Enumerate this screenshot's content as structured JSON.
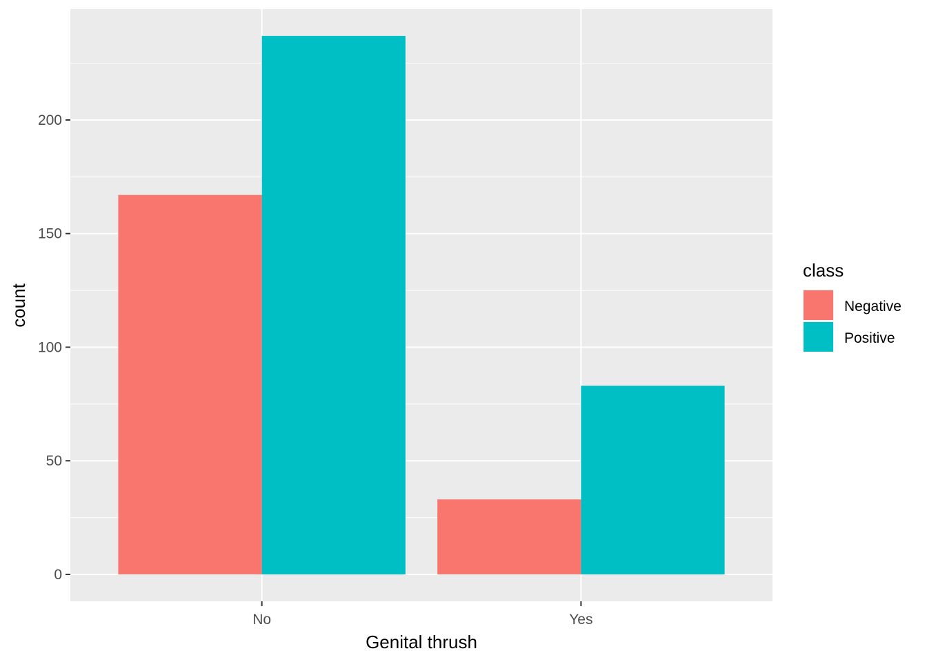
{
  "chart_data": {
    "type": "bar",
    "categories": [
      "No",
      "Yes"
    ],
    "series": [
      {
        "name": "Negative",
        "values": [
          167,
          33
        ],
        "color": "#F8766D"
      },
      {
        "name": "Positive",
        "values": [
          237,
          83
        ],
        "color": "#00BFC4"
      }
    ],
    "xlabel": "Genital thrush",
    "ylabel": "count",
    "ylim": [
      -11.85,
      248.85
    ],
    "yticks": [
      0,
      50,
      100,
      150,
      200
    ],
    "ytick_labels": [
      "0",
      "50",
      "100",
      "150",
      "200"
    ],
    "legend": {
      "title": "class",
      "position": "right"
    },
    "grid": true,
    "panel_background": "#EBEBEB",
    "grid_color": "#FFFFFF"
  }
}
